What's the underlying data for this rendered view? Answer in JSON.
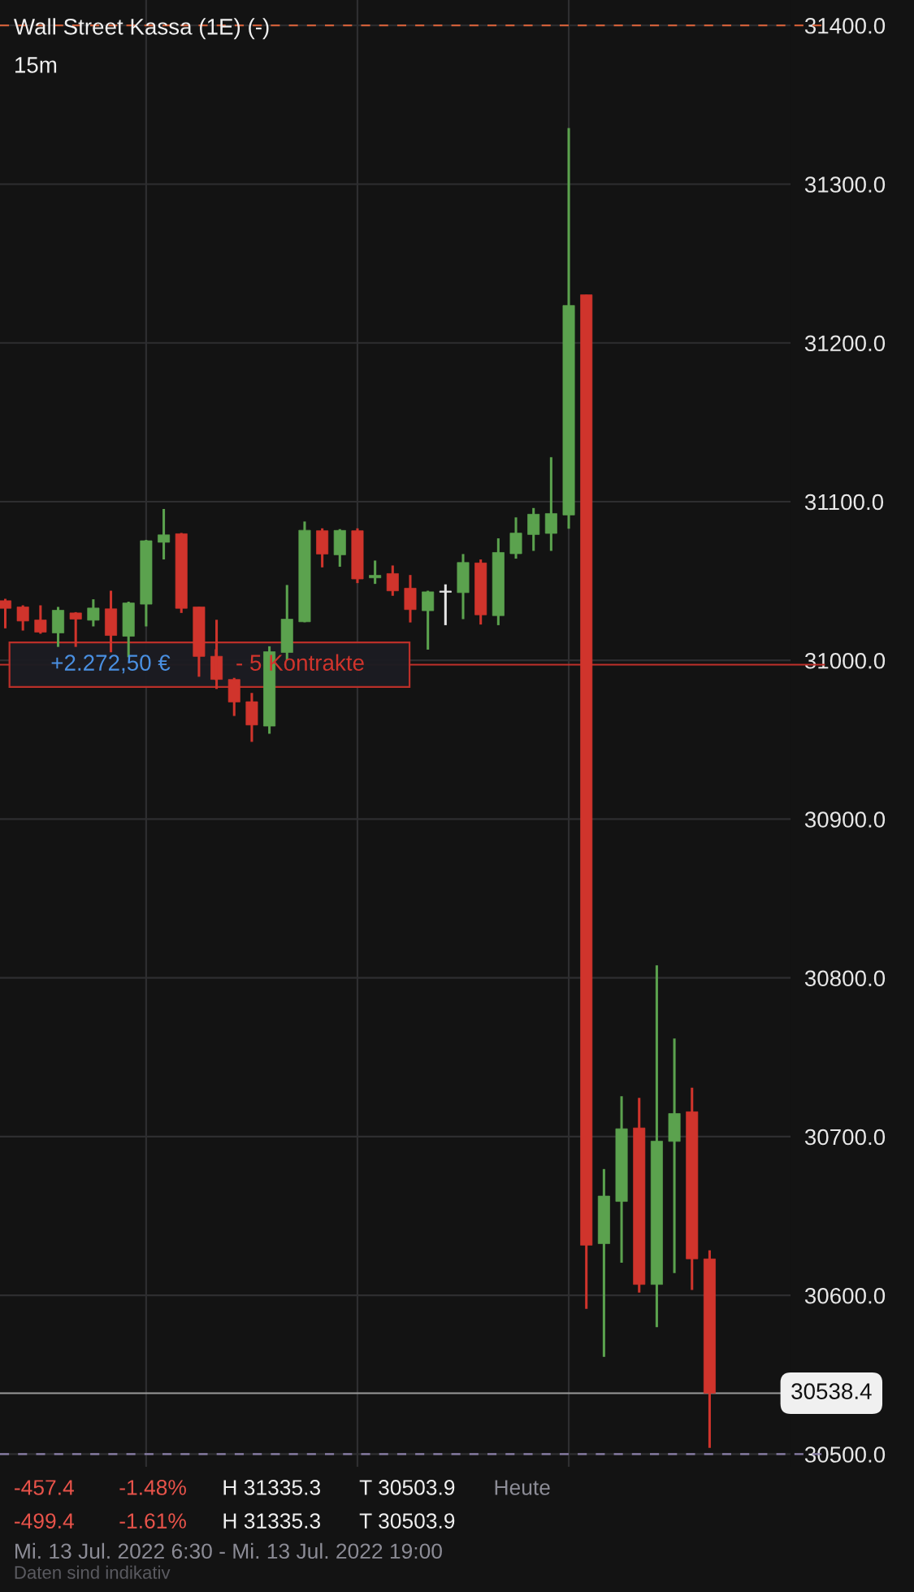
{
  "chart_data": {
    "type": "candlestick",
    "title": "Wall Street Kassa (1E) (-)",
    "subtitle": "15m",
    "categories": [
      null,
      null,
      null,
      null,
      null,
      null,
      null,
      null,
      null,
      null,
      null,
      null,
      null,
      null,
      null,
      null,
      null,
      null,
      null,
      null,
      null,
      null,
      null,
      null,
      null,
      null,
      null,
      null,
      null,
      null,
      null,
      null,
      null,
      null,
      null,
      null,
      null,
      null,
      null,
      null,
      null
    ],
    "ohlc": [
      [
        31037.6,
        31038.8,
        31020.2,
        31032.8
      ],
      [
        31033.7,
        31034.7,
        31018.8,
        31024.8
      ],
      [
        31025.5,
        31034.7,
        31016.8,
        31017.8
      ],
      [
        31017.3,
        31033.7,
        31008.5,
        31031.6
      ],
      [
        31029.9,
        31030.4,
        31008.5,
        31026.0
      ],
      [
        31025.3,
        31038.5,
        31021.4,
        31033.0
      ],
      [
        31032.5,
        31043.9,
        31005.1,
        31015.7
      ],
      [
        31015.2,
        31037.0,
        31002.0,
        31036.2
      ],
      [
        31035.4,
        31075.9,
        31021.4,
        31075.4
      ],
      [
        31074.4,
        31095.4,
        31063.6,
        31079.1
      ],
      [
        31079.8,
        31080.3,
        31029.9,
        31032.8
      ],
      [
        31033.7,
        31033.7,
        30989.7,
        31002.5
      ],
      [
        31002.6,
        31025.6,
        30982.0,
        30988.0
      ],
      [
        30988.0,
        30989.0,
        30965.0,
        30973.8
      ],
      [
        30974.0,
        30979.5,
        30948.7,
        30959.3
      ],
      [
        30958.6,
        31008.9,
        30953.8,
        31005.5
      ],
      [
        31005.0,
        31047.5,
        31000.0,
        31026.0
      ],
      [
        31024.3,
        31087.5,
        31024.0,
        31082.0
      ],
      [
        31081.7,
        31083.2,
        31058.6,
        31067.0
      ],
      [
        31066.5,
        31082.7,
        31059.0,
        31081.9
      ],
      [
        31081.7,
        31083.2,
        31048.7,
        31051.3
      ],
      [
        31052.0,
        31062.9,
        31048.2,
        31053.6
      ],
      [
        31054.7,
        31059.8,
        31040.7,
        31043.8
      ],
      [
        31045.5,
        31053.8,
        31023.9,
        31032.0
      ],
      [
        31031.3,
        31043.9,
        31006.8,
        31043.2
      ],
      [
        31042.9,
        31047.9,
        31022.2,
        31042.9
      ],
      [
        31042.7,
        31067.0,
        31026.0,
        31061.7
      ],
      [
        31061.4,
        31063.6,
        31022.6,
        31028.7
      ],
      [
        31028.2,
        31076.9,
        31022.2,
        31068.0
      ],
      [
        31067.2,
        31090.1,
        31064.1,
        31080.2
      ],
      [
        31079.3,
        31096.0,
        31069.0,
        31092.1
      ],
      [
        31080.0,
        31128.0,
        31069.0,
        31092.5
      ],
      [
        31091.6,
        31335.3,
        31083.0,
        31223.6
      ],
      [
        31230.3,
        31230.3,
        30591.6,
        30631.6
      ],
      [
        30632.6,
        30679.6,
        30561.3,
        30662.6
      ],
      [
        30659.2,
        30725.5,
        30620.6,
        30705.0
      ],
      [
        30705.5,
        30724.5,
        30601.8,
        30606.9
      ],
      [
        30606.9,
        30807.9,
        30580.0,
        30697.2
      ],
      [
        30697.0,
        30761.8,
        30614.1,
        30714.6
      ],
      [
        30715.7,
        30730.8,
        30603.5,
        30623.0
      ],
      [
        30623.0,
        30628.4,
        30503.9,
        30538.4
      ]
    ],
    "colors": [
      "#d0342c",
      "#d0342c",
      "#d0342c",
      "#5ba24e",
      "#d0342c",
      "#5ba24e",
      "#d0342c",
      "#5ba24e",
      "#5ba24e",
      "#5ba24e",
      "#d0342c",
      "#d0342c",
      "#d0342c",
      "#d0342c",
      "#d0342c",
      "#5ba24e",
      "#5ba24e",
      "#5ba24e",
      "#d0342c",
      "#5ba24e",
      "#d0342c",
      "#5ba24e",
      "#d0342c",
      "#d0342c",
      "#5ba24e",
      "#e6e6e6",
      "#5ba24e",
      "#d0342c",
      "#5ba24e",
      "#5ba24e",
      "#5ba24e",
      "#5ba24e",
      "#5ba24e",
      "#d0342c",
      "#5ba24e",
      "#5ba24e",
      "#d0342c",
      "#5ba24e",
      "#5ba24e",
      "#d0342c",
      "#d0342c"
    ],
    "ylim": [
      30492,
      31416
    ],
    "yticks": [
      {
        "value": 30500,
        "label": "30500.0"
      },
      {
        "value": 30600,
        "label": "30600.0"
      },
      {
        "value": 30700,
        "label": "30700.0"
      },
      {
        "value": 30800,
        "label": "30800.0"
      },
      {
        "value": 30900,
        "label": "30900.0"
      },
      {
        "value": 31000,
        "label": "31000.0"
      },
      {
        "value": 31100,
        "label": "31100.0"
      },
      {
        "value": 31200,
        "label": "31200.0"
      },
      {
        "value": 31300,
        "label": "31300.0"
      },
      {
        "value": 31400,
        "label": "31400.0"
      }
    ],
    "tick_labels": "y",
    "grid": true,
    "ref_lines": [
      {
        "axis": "y",
        "value": 31400,
        "color": "#e0643a",
        "line_style": "dashed"
      },
      {
        "axis": "y",
        "value": 30500,
        "color": "#8a7fa8",
        "line_style": "dashed"
      },
      {
        "axis": "y",
        "value": 30538.4,
        "label": "30538.4",
        "color": "#9a9a9a",
        "line_style": "solid"
      },
      {
        "axis": "y",
        "value": 30997.3,
        "label": "+2.272,50 €",
        "color": "#c0302a",
        "line_style": "solid"
      }
    ],
    "annotations": [
      {
        "text": "- 5 Kontrakte",
        "y": 30997.3
      },
      "-457.4",
      "-1.48%",
      "H 31335.3",
      "T 30503.9",
      "Heute",
      "-499.4",
      "-1.61%",
      "H 31335.3",
      "T 30503.9",
      "Mi. 13 Jul. 2022 6:30 - Mi. 13 Jul. 2022 19:00",
      "Daten sind indikativ"
    ]
  }
}
